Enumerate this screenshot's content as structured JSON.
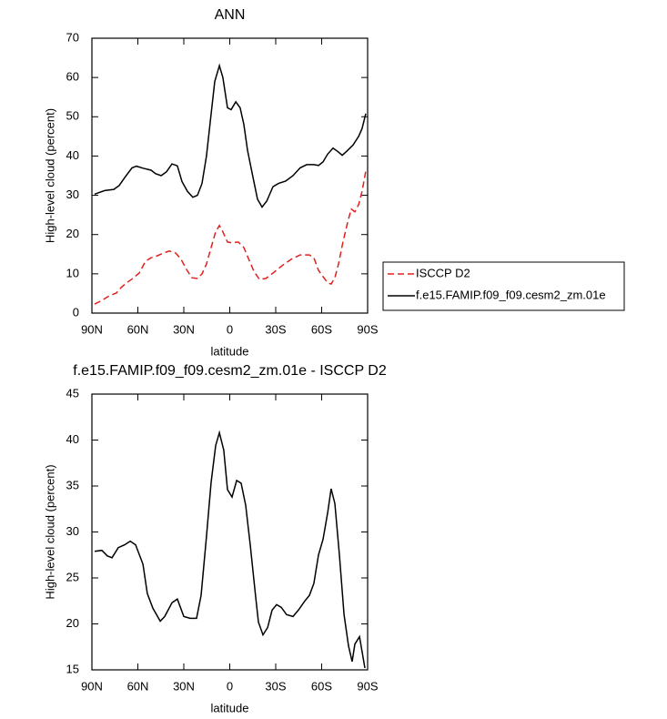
{
  "chart_data": [
    {
      "type": "line",
      "title": "ANN",
      "xlabel": "latitude",
      "ylabel": "High-level cloud (percent)",
      "xlim": [
        90,
        -90
      ],
      "ylim": [
        0,
        70
      ],
      "xticks": [
        {
          "value": 90,
          "label": "90N"
        },
        {
          "value": 60,
          "label": "60N"
        },
        {
          "value": 30,
          "label": "30N"
        },
        {
          "value": 0,
          "label": "0"
        },
        {
          "value": -30,
          "label": "30S"
        },
        {
          "value": -60,
          "label": "60S"
        },
        {
          "value": -90,
          "label": "90S"
        }
      ],
      "yticks": [
        0,
        10,
        20,
        30,
        40,
        50,
        60,
        70
      ],
      "series": [
        {
          "name": "ISCCP D2",
          "color": "#e0201b",
          "dashed": true,
          "x": [
            88.2,
            83.5,
            78.7,
            74.0,
            71.0,
            67.4,
            63.3,
            59.1,
            55.0,
            51.4,
            47.2,
            43.1,
            39.5,
            35.3,
            31.8,
            28.2,
            24.7,
            21.1,
            18.1,
            15.2,
            12.2,
            9.2,
            6.8,
            4.5,
            1.5,
            -1.5,
            -5.6,
            -9.2,
            -12.2,
            -15.7,
            -19.3,
            -23.5,
            -28.2,
            -34.2,
            -40.1,
            -46.0,
            -52.0,
            -54.9,
            -57.9,
            -60.9,
            -63.9,
            -66.2,
            -68.6,
            -71.0,
            -73.9,
            -76.9,
            -79.3,
            -81.7,
            -84.1,
            -86.4,
            -88.8
          ],
          "values": [
            2.3,
            3.2,
            4.4,
            5.1,
            6.5,
            7.7,
            8.8,
            10.2,
            13.2,
            14.1,
            14.6,
            15.3,
            15.8,
            15.3,
            13.7,
            11.1,
            9.0,
            8.8,
            10.0,
            12.5,
            16.7,
            20.7,
            22.3,
            20.7,
            18.1,
            17.9,
            18.1,
            16.7,
            13.9,
            10.7,
            8.6,
            8.8,
            10.2,
            12.1,
            13.7,
            14.8,
            14.8,
            14.1,
            10.9,
            9.3,
            7.7,
            7.4,
            9.0,
            12.5,
            18.1,
            23.0,
            26.5,
            25.8,
            27.6,
            31.0,
            36.2
          ]
        },
        {
          "name": "f.e15.FAMIP.f09_f09.cesm2_zm.01e",
          "color": "#000000",
          "dashed": false,
          "x": [
            88.2,
            81.7,
            75.7,
            72.2,
            68.6,
            63.8,
            60.9,
            56.7,
            51.4,
            48.4,
            44.8,
            41.3,
            37.7,
            34.2,
            31.2,
            27.6,
            24.1,
            21.1,
            18.1,
            15.2,
            12.2,
            9.8,
            6.8,
            4.5,
            1.5,
            -0.9,
            -3.9,
            -6.8,
            -9.2,
            -11.6,
            -15.2,
            -18.1,
            -21.1,
            -24.1,
            -28.2,
            -31.8,
            -36.5,
            -41.3,
            -46.0,
            -50.2,
            -54.9,
            -57.9,
            -60.9,
            -63.9,
            -67.4,
            -70.4,
            -73.4,
            -76.3,
            -80.5,
            -84.1,
            -86.4,
            -88.8
          ],
          "values": [
            30.3,
            31.2,
            31.5,
            32.5,
            34.5,
            37.0,
            37.4,
            36.9,
            36.4,
            35.5,
            35.0,
            36.0,
            38.0,
            37.5,
            33.5,
            31.0,
            29.5,
            30.0,
            33.0,
            40.0,
            50.7,
            59.0,
            63.0,
            60.0,
            52.3,
            51.8,
            53.8,
            52.3,
            48.0,
            41.5,
            34.5,
            29.0,
            27.0,
            28.5,
            32.2,
            33.0,
            33.6,
            35.0,
            37.0,
            37.8,
            37.8,
            37.6,
            38.5,
            40.5,
            42.0,
            41.2,
            40.2,
            41.2,
            42.8,
            45.0,
            47.0,
            50.8
          ]
        }
      ]
    },
    {
      "type": "line",
      "title": "f.e15.FAMIP.f09_f09.cesm2_zm.01e - ISCCP D2",
      "xlabel": "latitude",
      "ylabel": "High-level cloud (percent)",
      "xlim": [
        90,
        -90
      ],
      "ylim": [
        15,
        45
      ],
      "xticks": [
        {
          "value": 90,
          "label": "90N"
        },
        {
          "value": 60,
          "label": "60N"
        },
        {
          "value": 30,
          "label": "30N"
        },
        {
          "value": 0,
          "label": "0"
        },
        {
          "value": -30,
          "label": "30S"
        },
        {
          "value": -60,
          "label": "60S"
        },
        {
          "value": -90,
          "label": "90S"
        }
      ],
      "yticks": [
        15,
        20,
        25,
        30,
        35,
        40,
        45
      ],
      "x": [
        88.2,
        83.5,
        79.9,
        76.9,
        72.8,
        68.6,
        65.0,
        61.5,
        56.7,
        53.8,
        50.2,
        45.4,
        42.5,
        37.7,
        34.2,
        30.0,
        25.9,
        21.7,
        18.7,
        15.2,
        12.2,
        9.2,
        6.8,
        3.9,
        1.5,
        -1.5,
        -4.5,
        -7.4,
        -10.4,
        -13.4,
        -16.9,
        -18.7,
        -21.7,
        -24.7,
        -27.6,
        -30.6,
        -33.6,
        -37.1,
        -41.3,
        -44.8,
        -49.0,
        -52.0,
        -54.9,
        -57.9,
        -60.9,
        -63.9,
        -66.2,
        -68.6,
        -71.6,
        -74.6,
        -77.5,
        -79.9,
        -81.7,
        -84.7,
        -88.2
      ],
      "series": [
        {
          "color": "#000000",
          "dashed": false,
          "values": [
            27.9,
            28.0,
            27.4,
            27.2,
            28.3,
            28.6,
            29.0,
            28.6,
            26.5,
            23.3,
            21.7,
            20.3,
            20.8,
            22.3,
            22.7,
            20.8,
            20.6,
            20.6,
            23.1,
            29.5,
            35.4,
            39.4,
            40.8,
            38.9,
            34.6,
            33.8,
            35.6,
            35.3,
            32.9,
            28.5,
            23.0,
            20.2,
            18.8,
            19.6,
            21.5,
            22.1,
            21.8,
            21.0,
            20.8,
            21.5,
            22.5,
            23.1,
            24.4,
            27.5,
            29.2,
            32.1,
            34.7,
            33.1,
            27.5,
            21.0,
            17.6,
            15.9,
            17.8,
            18.6,
            15.2
          ]
        }
      ]
    }
  ]
}
